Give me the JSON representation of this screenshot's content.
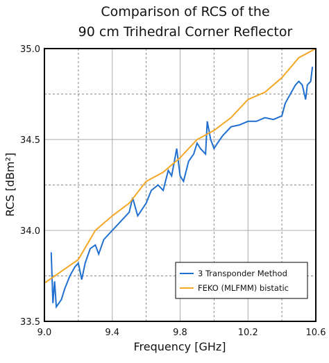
{
  "chart_data": {
    "type": "line",
    "title": [
      "Comparison of RCS of the",
      "90 cm Trihedral Corner Reflector"
    ],
    "xlabel": "Frequency [GHz]",
    "ylabel": "RCS [dBm²]",
    "xlim": [
      9.0,
      10.6
    ],
    "ylim": [
      33.5,
      35.0
    ],
    "xticks": [
      {
        "value": 9.0,
        "label": "9.0"
      },
      9.4,
      9.8,
      10.2,
      10.6
    ],
    "yticks": [
      33.5,
      {
        "value": 34.0,
        "label": "34.0"
      },
      34.5,
      {
        "value": 35.0,
        "label": "35.0"
      }
    ],
    "x_minor_grid": [
      9.2,
      9.6,
      10.0,
      10.4
    ],
    "y_minor_grid": [
      33.75,
      34.25,
      34.75
    ],
    "grid": true,
    "legend": "lower right",
    "series": [
      {
        "name": "3 Transponder Method",
        "color": "#1f6fd1",
        "x": [
          9.04,
          9.05,
          9.06,
          9.07,
          9.1,
          9.12,
          9.15,
          9.18,
          9.2,
          9.22,
          9.24,
          9.27,
          9.3,
          9.32,
          9.35,
          9.4,
          9.45,
          9.5,
          9.52,
          9.55,
          9.6,
          9.63,
          9.67,
          9.7,
          9.73,
          9.75,
          9.78,
          9.8,
          9.82,
          9.85,
          9.88,
          9.9,
          9.92,
          9.95,
          9.96,
          9.98,
          10.0,
          10.02,
          10.05,
          10.1,
          10.15,
          10.2,
          10.25,
          10.3,
          10.35,
          10.4,
          10.42,
          10.45,
          10.48,
          10.5,
          10.52,
          10.54,
          10.55,
          10.57,
          10.58
        ],
        "values": [
          33.88,
          33.6,
          33.72,
          33.58,
          33.62,
          33.68,
          33.75,
          33.8,
          33.82,
          33.73,
          33.82,
          33.9,
          33.92,
          33.87,
          33.95,
          34.0,
          34.05,
          34.1,
          34.18,
          34.08,
          34.15,
          34.22,
          34.25,
          34.22,
          34.33,
          34.3,
          34.45,
          34.3,
          34.27,
          34.38,
          34.42,
          34.48,
          34.45,
          34.42,
          34.6,
          34.5,
          34.45,
          34.48,
          34.52,
          34.57,
          34.58,
          34.6,
          34.6,
          34.62,
          34.61,
          34.63,
          34.7,
          34.75,
          34.8,
          34.82,
          34.8,
          34.72,
          34.8,
          34.82,
          34.9
        ]
      },
      {
        "name": "FEKO (MLFMM) bistatic",
        "color": "#f5a623",
        "x": [
          9.0,
          9.2,
          9.3,
          9.4,
          9.5,
          9.6,
          9.7,
          9.8,
          9.9,
          10.0,
          10.1,
          10.2,
          10.3,
          10.4,
          10.5,
          10.6
        ],
        "values": [
          33.71,
          33.84,
          34.0,
          34.08,
          34.15,
          34.27,
          34.32,
          34.4,
          34.5,
          34.55,
          34.62,
          34.72,
          34.76,
          34.84,
          34.95,
          35.0
        ]
      }
    ]
  }
}
